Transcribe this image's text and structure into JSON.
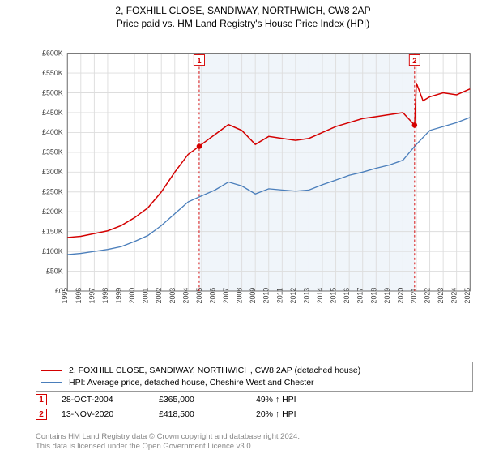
{
  "title": "2, FOXHILL CLOSE, SANDIWAY, NORTHWICH, CW8 2AP",
  "subtitle": "Price paid vs. HM Land Registry's House Price Index (HPI)",
  "chart": {
    "type": "line",
    "background_color": "#ffffff",
    "grid_color": "#dddddd",
    "axis_color": "#666666",
    "shaded_region": {
      "x_start": 2004.82,
      "x_end": 2020.87,
      "fill": "#eaf1f8",
      "opacity": 0.7
    },
    "x_axis": {
      "min": 1995,
      "max": 2025,
      "ticks": [
        1995,
        1996,
        1997,
        1998,
        1999,
        2000,
        2001,
        2002,
        2003,
        2004,
        2005,
        2006,
        2007,
        2008,
        2009,
        2010,
        2011,
        2012,
        2013,
        2014,
        2015,
        2016,
        2017,
        2018,
        2019,
        2020,
        2021,
        2022,
        2023,
        2024,
        2025
      ],
      "tick_fontsize": 9.5,
      "tick_rotation": -90
    },
    "y_axis": {
      "min": 0,
      "max": 600000,
      "ticks": [
        0,
        50000,
        100000,
        150000,
        200000,
        250000,
        300000,
        350000,
        400000,
        450000,
        500000,
        550000,
        600000
      ],
      "tick_labels": [
        "£0",
        "£50K",
        "£100K",
        "£150K",
        "£200K",
        "£250K",
        "£300K",
        "£350K",
        "£400K",
        "£450K",
        "£500K",
        "£550K",
        "£600K"
      ],
      "tick_fontsize": 9.5
    },
    "series": [
      {
        "name": "property",
        "label": "2, FOXHILL CLOSE, SANDIWAY, NORTHWICH, CW8 2AP (detached house)",
        "color": "#d40000",
        "line_width": 1.6,
        "data": [
          [
            1995,
            135000
          ],
          [
            1996,
            138000
          ],
          [
            1997,
            145000
          ],
          [
            1998,
            152000
          ],
          [
            1999,
            165000
          ],
          [
            2000,
            185000
          ],
          [
            2001,
            210000
          ],
          [
            2002,
            250000
          ],
          [
            2003,
            300000
          ],
          [
            2004,
            345000
          ],
          [
            2004.82,
            365000
          ],
          [
            2005,
            370000
          ],
          [
            2006,
            395000
          ],
          [
            2007,
            420000
          ],
          [
            2008,
            405000
          ],
          [
            2009,
            370000
          ],
          [
            2010,
            390000
          ],
          [
            2011,
            385000
          ],
          [
            2012,
            380000
          ],
          [
            2013,
            385000
          ],
          [
            2014,
            400000
          ],
          [
            2015,
            415000
          ],
          [
            2016,
            425000
          ],
          [
            2017,
            435000
          ],
          [
            2018,
            440000
          ],
          [
            2019,
            445000
          ],
          [
            2020,
            450000
          ],
          [
            2020.87,
            418500
          ],
          [
            2021,
            525000
          ],
          [
            2021.5,
            480000
          ],
          [
            2022,
            490000
          ],
          [
            2023,
            500000
          ],
          [
            2024,
            495000
          ],
          [
            2025,
            510000
          ]
        ]
      },
      {
        "name": "hpi",
        "label": "HPI: Average price, detached house, Cheshire West and Chester",
        "color": "#4a7ebb",
        "line_width": 1.4,
        "data": [
          [
            1995,
            92000
          ],
          [
            1996,
            95000
          ],
          [
            1997,
            100000
          ],
          [
            1998,
            105000
          ],
          [
            1999,
            112000
          ],
          [
            2000,
            125000
          ],
          [
            2001,
            140000
          ],
          [
            2002,
            165000
          ],
          [
            2003,
            195000
          ],
          [
            2004,
            225000
          ],
          [
            2005,
            240000
          ],
          [
            2006,
            255000
          ],
          [
            2007,
            275000
          ],
          [
            2008,
            265000
          ],
          [
            2009,
            245000
          ],
          [
            2010,
            258000
          ],
          [
            2011,
            255000
          ],
          [
            2012,
            252000
          ],
          [
            2013,
            255000
          ],
          [
            2014,
            268000
          ],
          [
            2015,
            280000
          ],
          [
            2016,
            292000
          ],
          [
            2017,
            300000
          ],
          [
            2018,
            310000
          ],
          [
            2019,
            318000
          ],
          [
            2020,
            330000
          ],
          [
            2021,
            370000
          ],
          [
            2022,
            405000
          ],
          [
            2023,
            415000
          ],
          [
            2024,
            425000
          ],
          [
            2025,
            438000
          ]
        ]
      }
    ],
    "markers": [
      {
        "id": "1",
        "x": 2004.82,
        "y": 365000,
        "color": "#d40000",
        "label_y_offset": -300,
        "dash": "3,3"
      },
      {
        "id": "2",
        "x": 2020.87,
        "y": 418500,
        "color": "#d40000",
        "label_y_offset": -360,
        "dash": "3,3"
      }
    ],
    "marker_dot_radius": 3.5
  },
  "legend": {
    "border_color": "#999999",
    "items": [
      {
        "color": "#d40000",
        "label": "2, FOXHILL CLOSE, SANDIWAY, NORTHWICH, CW8 2AP (detached house)"
      },
      {
        "color": "#4a7ebb",
        "label": "HPI: Average price, detached house, Cheshire West and Chester"
      }
    ]
  },
  "events": [
    {
      "marker": "1",
      "marker_color": "#d40000",
      "date": "28-OCT-2004",
      "price": "£365,000",
      "hpi": "49% ↑ HPI"
    },
    {
      "marker": "2",
      "marker_color": "#d40000",
      "date": "13-NOV-2020",
      "price": "£418,500",
      "hpi": "20% ↑ HPI"
    }
  ],
  "footer_line1": "Contains HM Land Registry data © Crown copyright and database right 2024.",
  "footer_line2": "This data is licensed under the Open Government Licence v3.0."
}
